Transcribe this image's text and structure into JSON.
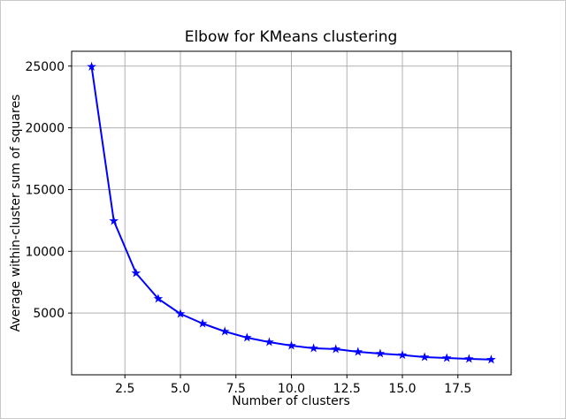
{
  "figure": {
    "background": "#ffffff",
    "border_color": "#c9c9c9"
  },
  "chart_data": {
    "type": "line",
    "title": "Elbow for KMeans clustering",
    "xlabel": "Number of clusters",
    "ylabel": "Average within-cluster sum of squares",
    "x": [
      1,
      2,
      3,
      4,
      5,
      6,
      7,
      8,
      9,
      10,
      11,
      12,
      13,
      14,
      15,
      16,
      17,
      18,
      19
    ],
    "y": [
      24950,
      12460,
      8230,
      6160,
      4940,
      4150,
      3510,
      3010,
      2650,
      2360,
      2150,
      2080,
      1860,
      1720,
      1600,
      1430,
      1360,
      1290,
      1230
    ],
    "xlim": [
      0.1,
      19.9
    ],
    "ylim": [
      0,
      26200
    ],
    "xticks": [
      2.5,
      5.0,
      7.5,
      10.0,
      12.5,
      15.0,
      17.5
    ],
    "xtick_labels": [
      "2.5",
      "5.0",
      "7.5",
      "10.0",
      "12.5",
      "15.0",
      "17.5"
    ],
    "yticks": [
      5000,
      10000,
      15000,
      20000,
      25000
    ],
    "ytick_labels": [
      "5000",
      "10000",
      "15000",
      "20000",
      "25000"
    ],
    "grid": true,
    "legend": false,
    "line_color": "#0000ff",
    "line_width": 2,
    "marker": "star",
    "marker_color": "#0000ff",
    "grid_color": "#b0b0b0",
    "axis_color": "#000000"
  }
}
